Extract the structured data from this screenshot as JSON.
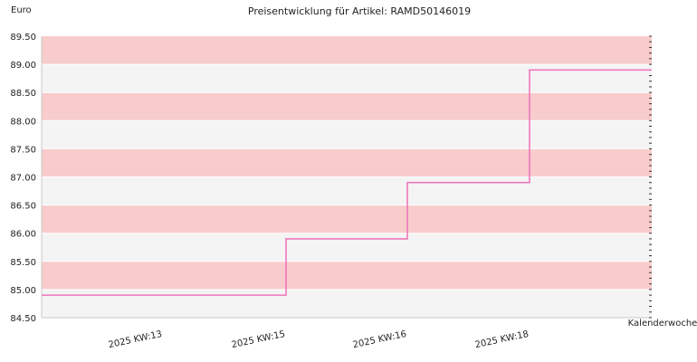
{
  "chart_data": {
    "type": "line",
    "step": true,
    "title": "Preisentwicklung für Artikel: RAMD50146019",
    "ylabel": "Euro",
    "xlabel": "Kalenderwoche",
    "ylim": [
      84.5,
      89.5
    ],
    "yticks": [
      "84.50",
      "85.00",
      "85.50",
      "86.00",
      "86.50",
      "87.00",
      "87.50",
      "88.00",
      "88.50",
      "89.00",
      "89.50"
    ],
    "categories": [
      "2025 KW:13",
      "2025 KW:15",
      "2025 KW:16",
      "2025 KW:18"
    ],
    "series": [
      {
        "values": [
          84.9,
          85.9,
          86.9,
          88.9
        ]
      }
    ],
    "grid": "alternating horizontal bands",
    "colors": {
      "line": "#ee77bb",
      "band_dark": "#f8cccc",
      "band_light": "#f4f4f4",
      "grid_line": "#ffffff",
      "axis": "#c8c8c8",
      "text": "#222222"
    }
  }
}
